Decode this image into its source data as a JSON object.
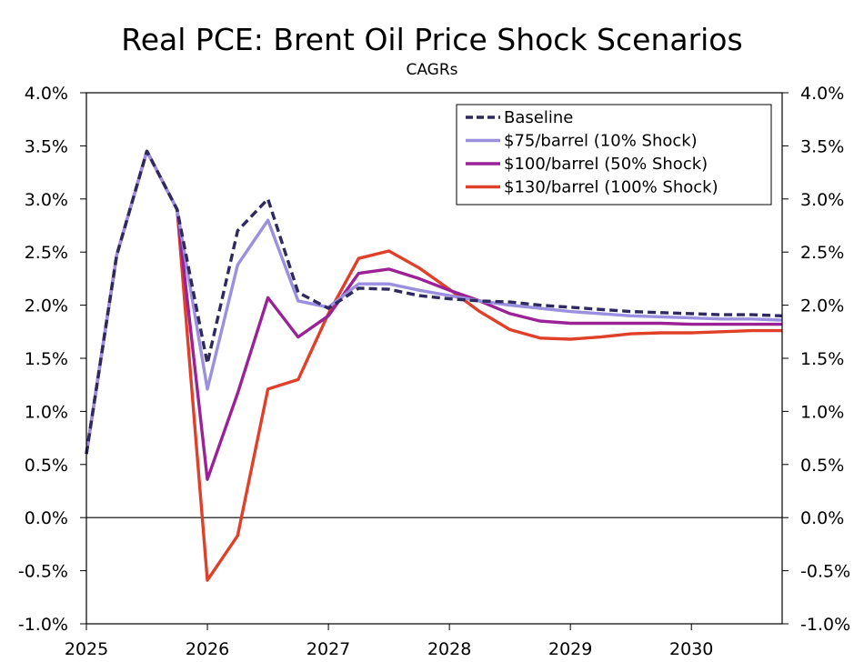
{
  "chart_data": {
    "type": "line",
    "title": "Real PCE: Brent Oil Price Shock Scenarios",
    "subtitle": "CAGRs",
    "xlabel": "",
    "ylabel": "",
    "xlim": [
      2025,
      2030.75
    ],
    "ylim": [
      -1.0,
      4.0
    ],
    "x_ticks": [
      2025,
      2026,
      2027,
      2028,
      2029,
      2030
    ],
    "x_tick_labels": [
      "2025",
      "2026",
      "2027",
      "2028",
      "2029",
      "2030"
    ],
    "y_ticks": [
      -1.0,
      -0.5,
      0.0,
      0.5,
      1.0,
      1.5,
      2.0,
      2.5,
      3.0,
      3.5,
      4.0
    ],
    "y_tick_labels": [
      "-1.0%",
      "-0.5%",
      "0.0%",
      "0.5%",
      "1.0%",
      "1.5%",
      "2.0%",
      "2.5%",
      "3.0%",
      "3.5%",
      "4.0%"
    ],
    "legend_position": "top-right",
    "x": [
      2025.0,
      2025.25,
      2025.5,
      2025.75,
      2026.0,
      2026.25,
      2026.5,
      2026.75,
      2027.0,
      2027.25,
      2027.5,
      2027.75,
      2028.0,
      2028.25,
      2028.5,
      2028.75,
      2029.0,
      2029.25,
      2029.5,
      2029.75,
      2030.0,
      2030.25,
      2030.5,
      2030.75
    ],
    "series": [
      {
        "name": "Baseline",
        "color": "#2e2a5e",
        "style": "dashed",
        "values": [
          0.6,
          2.47,
          3.45,
          2.9,
          1.45,
          2.7,
          3.0,
          2.12,
          1.97,
          2.16,
          2.15,
          2.09,
          2.06,
          2.04,
          2.03,
          2.0,
          1.98,
          1.96,
          1.94,
          1.93,
          1.92,
          1.91,
          1.91,
          1.9
        ]
      },
      {
        "name": "$75/barrel (10% Shock)",
        "color": "#9b8fdf",
        "style": "solid",
        "values": [
          0.6,
          2.47,
          3.45,
          2.9,
          1.21,
          2.38,
          2.8,
          2.04,
          1.98,
          2.2,
          2.2,
          2.14,
          2.09,
          2.04,
          2.0,
          1.97,
          1.94,
          1.92,
          1.9,
          1.89,
          1.88,
          1.87,
          1.87,
          1.86
        ]
      },
      {
        "name": "$100/barrel (50% Shock)",
        "color": "#9a2196",
        "style": "solid",
        "values": [
          0.6,
          2.47,
          3.45,
          2.9,
          0.36,
          1.17,
          2.07,
          1.7,
          1.9,
          2.3,
          2.34,
          2.25,
          2.14,
          2.04,
          1.92,
          1.85,
          1.83,
          1.83,
          1.83,
          1.83,
          1.82,
          1.82,
          1.82,
          1.82
        ]
      },
      {
        "name": "$130/barrel (100% Shock)",
        "color": "#e0402a",
        "style": "solid",
        "values": [
          0.6,
          2.47,
          3.45,
          2.9,
          -0.59,
          -0.17,
          1.21,
          1.3,
          1.92,
          2.44,
          2.51,
          2.35,
          2.15,
          1.94,
          1.77,
          1.69,
          1.68,
          1.7,
          1.73,
          1.74,
          1.74,
          1.75,
          1.76,
          1.76
        ]
      }
    ]
  }
}
